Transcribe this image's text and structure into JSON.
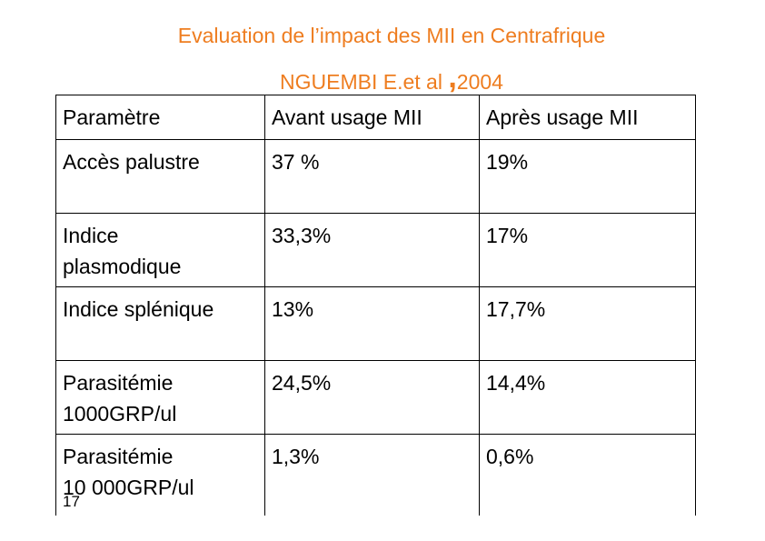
{
  "header": {
    "title_line1": "Evaluation de l’impact des MII en Centrafrique",
    "title_line2_main": "NGUEMBI E.et al",
    "title_line2_comma": ",",
    "title_line2_year": "2004"
  },
  "table": {
    "headers": [
      "Paramètre",
      "Avant  usage MII",
      "Après usage MII"
    ],
    "rows": [
      {
        "param": [
          "Accès palustre"
        ],
        "before": "37 %",
        "after": "19%"
      },
      {
        "param": [
          "Indice",
          "plasmodique"
        ],
        "before": "33,3%",
        "after": "17%"
      },
      {
        "param": [
          "Indice splénique"
        ],
        "before": "13%",
        "after": "17,7%"
      },
      {
        "param": [
          "Parasitémie",
          "1000GRP/ul"
        ],
        "before": "24,5%",
        "after": "14,4%"
      },
      {
        "param": [
          "Parasitémie",
          "10 000GRP/ul"
        ],
        "before": "1,3%",
        "after": "0,6%"
      }
    ]
  },
  "slide_number": "17",
  "colors": {
    "title": "#ee7d20",
    "text": "#000000",
    "border": "#000000"
  }
}
